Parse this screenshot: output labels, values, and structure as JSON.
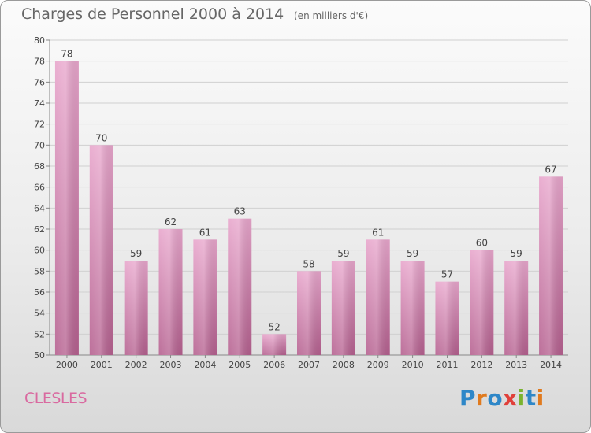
{
  "header": {
    "title": "Charges de Personnel 2000 à 2014",
    "subtitle": "(en milliers d'€)"
  },
  "footer": {
    "commune": "CLESLES",
    "logo_text": "Proxiti",
    "logo_colors": [
      "#2e87c8",
      "#e07a1e",
      "#2e87c8",
      "#e0403a",
      "#7ab32e",
      "#2e87c8",
      "#e07a1e"
    ]
  },
  "colors": {
    "bar_top": "#e8a6cc",
    "bar_bottom": "#b5608f",
    "label": "#444444"
  },
  "chart_data": {
    "type": "bar",
    "categories": [
      "2000",
      "2001",
      "2002",
      "2003",
      "2004",
      "2005",
      "2006",
      "2007",
      "2008",
      "2009",
      "2010",
      "2011",
      "2012",
      "2013",
      "2014"
    ],
    "values": [
      78,
      70,
      59,
      62,
      61,
      63,
      52,
      58,
      59,
      61,
      59,
      57,
      60,
      59,
      67
    ],
    "title": "Charges de Personnel 2000 à 2014",
    "ylim": [
      50,
      80
    ],
    "yticks": [
      50,
      52,
      54,
      56,
      58,
      60,
      62,
      64,
      66,
      68,
      70,
      72,
      74,
      76,
      78,
      80
    ],
    "grid": true
  }
}
